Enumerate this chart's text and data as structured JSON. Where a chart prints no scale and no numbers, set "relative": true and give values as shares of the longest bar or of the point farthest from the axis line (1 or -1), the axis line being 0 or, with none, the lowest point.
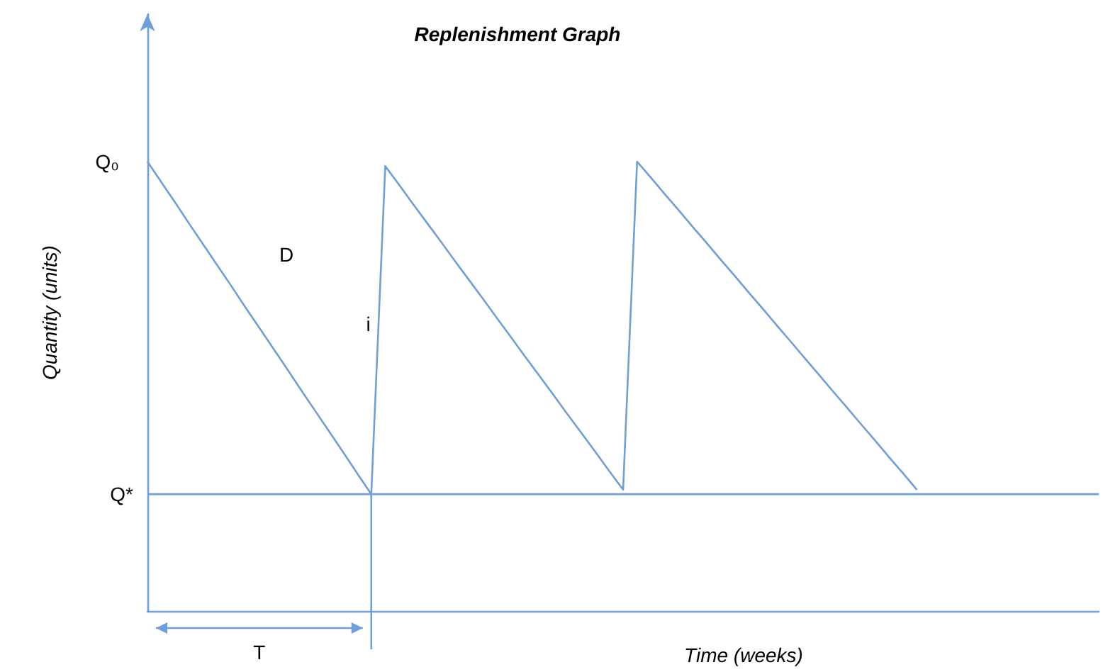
{
  "chart_data": {
    "type": "line",
    "relative": true,
    "title": "Replenishment Graph",
    "xlabel": "Time (weeks)",
    "ylabel": "Quantity (units)",
    "categories": [
      null,
      null,
      null,
      null,
      null,
      null,
      null,
      null,
      null,
      null,
      null,
      null,
      null,
      null,
      null,
      null,
      null,
      null,
      null,
      null,
      null,
      null,
      null,
      null,
      null,
      null,
      null,
      null,
      null,
      null,
      null,
      null,
      null,
      null,
      null,
      null,
      null,
      null,
      null,
      null,
      null,
      null,
      null,
      null,
      null,
      null,
      null,
      null,
      null,
      null,
      null,
      null,
      null,
      null,
      null,
      null,
      null,
      null,
      null,
      null,
      null,
      null,
      null,
      null,
      null,
      null,
      null,
      null,
      null
    ],
    "series": [
      {
        "color": "#6f9fd8",
        "values": [
          1,
          0.954,
          0.908,
          0.861,
          0.815,
          0.769,
          0.723,
          0.676,
          0.63,
          0.584,
          0.538,
          0.491,
          0.445,
          0.399,
          0.353,
          0.306,
          0.26,
          0.99,
          0.948,
          0.905,
          0.863,
          0.821,
          0.778,
          0.736,
          0.694,
          0.651,
          0.609,
          0.566,
          0.524,
          0.482,
          0.439,
          0.397,
          0.355,
          0.312,
          0.27,
          1,
          0.964,
          0.927,
          0.891,
          0.854,
          0.818,
          0.781,
          0.745,
          0.708,
          0.672,
          0.635,
          0.599,
          0.562,
          0.526,
          0.489,
          0.453,
          0.416,
          0.38,
          0.343,
          0.307,
          0.27,
          null,
          null,
          null,
          null,
          null,
          null,
          null,
          null,
          null,
          null,
          null,
          null,
          null
        ]
      },
      {
        "name": "Q*",
        "color": "#6f9fd8",
        "values": [
          0.26,
          0.26,
          0.26,
          0.26,
          0.26,
          0.26,
          0.26,
          0.26,
          0.26,
          0.26,
          0.26,
          0.26,
          0.26,
          0.26,
          0.26,
          0.26,
          0.26,
          0.26,
          0.26,
          0.26,
          0.26,
          0.26,
          0.26,
          0.26,
          0.26,
          0.26,
          0.26,
          0.26,
          0.26,
          0.26,
          0.26,
          0.26,
          0.26,
          0.26,
          0.26,
          0.26,
          0.26,
          0.26,
          0.26,
          0.26,
          0.26,
          0.26,
          0.26,
          0.26,
          0.26,
          0.26,
          0.26,
          0.26,
          0.26,
          0.26,
          0.26,
          0.26,
          0.26,
          0.26,
          0.26,
          0.26,
          0.26,
          0.26,
          0.26,
          0.26,
          0.26,
          0.26,
          0.26,
          0.26,
          0.26,
          0.26,
          0.26,
          0.26,
          0.26
        ]
      }
    ],
    "annotations": [
      "Q₀",
      "D",
      "i",
      "T"
    ],
    "marker": "none",
    "grid": false
  }
}
